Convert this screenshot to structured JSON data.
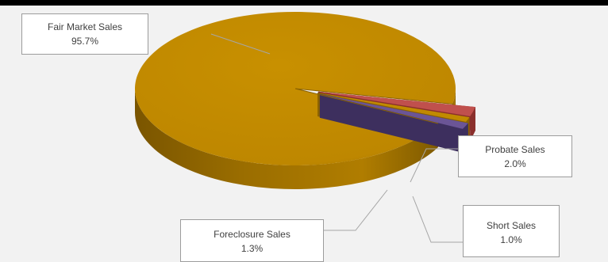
{
  "chart_data": {
    "type": "pie",
    "style": "3d-exploded",
    "slices": [
      {
        "label": "Fair Market  Sales",
        "value": 95.7,
        "value_label": "95.7%",
        "color": "#c18a00"
      },
      {
        "label": "Probate Sales",
        "value": 2.0,
        "value_label": "2.0%",
        "color": "#c0504d"
      },
      {
        "label": "Short Sales",
        "value": 1.0,
        "value_label": "1.0%",
        "color": "#c18a00"
      },
      {
        "label": "Foreclosure Sales",
        "value": 1.3,
        "value_label": "1.3%",
        "color": "#6b5596"
      }
    ],
    "legend": "none",
    "labels": "callouts"
  },
  "colors": {
    "background": "#f2f2f2",
    "leader_line": "#a6a6a6"
  }
}
